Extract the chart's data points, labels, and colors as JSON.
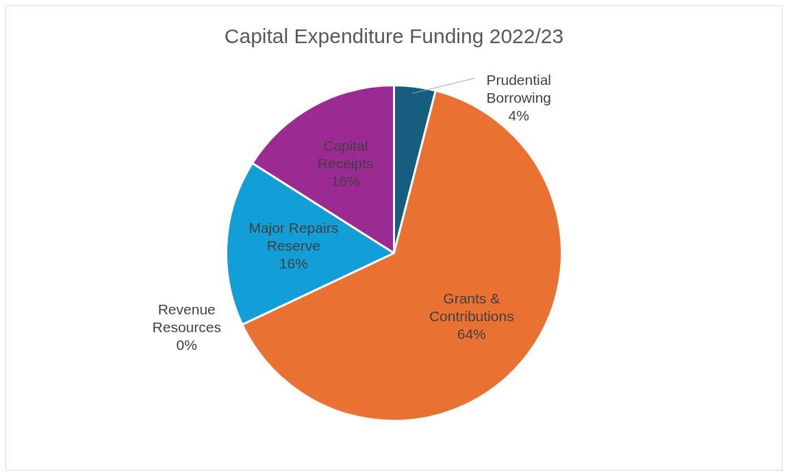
{
  "chart_data": {
    "type": "pie",
    "title": "Capital Expenditure Funding 2022/23",
    "categories": [
      "Prudential Borrowing",
      "Grants & Contributions",
      "Revenue Resources",
      "Major Repairs Reserve",
      "Capital Receipts"
    ],
    "values": [
      4,
      64,
      0,
      16,
      16
    ],
    "colors": [
      "#175d80",
      "#e97132",
      "#a5a5a5",
      "#129ed6",
      "#9c2a93"
    ],
    "value_labels": [
      "4%",
      "64%",
      "0%",
      "16%",
      "16%"
    ],
    "legend": false
  }
}
